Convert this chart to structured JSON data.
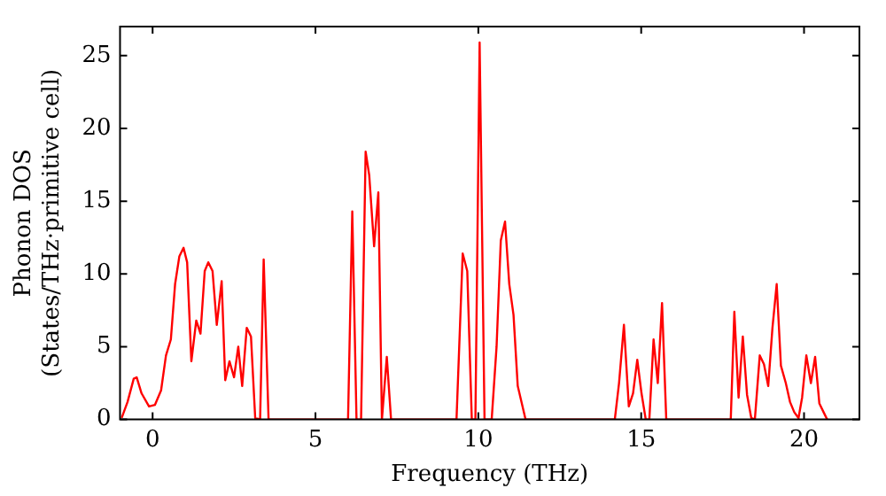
{
  "chart_data": {
    "type": "line",
    "xlabel": "Frequency (THz)",
    "ylabel": "Phonon DOS\n(States/THz·primitive cell)",
    "xlim": [
      -1,
      21.7
    ],
    "ylim": [
      0,
      27
    ],
    "xticks": [
      0,
      5,
      10,
      15,
      20
    ],
    "yticks": [
      0,
      5,
      10,
      15,
      20,
      25
    ],
    "grid": false,
    "legend": false,
    "marker": "none",
    "line_style": "solid",
    "series": [
      {
        "color": "#ff0000",
        "x": [
          -0.95,
          -0.77,
          -0.58,
          -0.49,
          -0.34,
          -0.11,
          0.07,
          0.26,
          0.41,
          0.56,
          0.69,
          0.82,
          0.95,
          1.06,
          1.19,
          1.34,
          1.47,
          1.6,
          1.71,
          1.84,
          1.97,
          2.12,
          2.23,
          2.36,
          2.5,
          2.63,
          2.75,
          2.89,
          3.02,
          3.15,
          3.3,
          3.41,
          3.56,
          6.0,
          6.13,
          6.26,
          6.4,
          6.54,
          6.65,
          6.8,
          6.93,
          7.04,
          7.19,
          7.32,
          9.33,
          9.52,
          9.66,
          9.8,
          9.91,
          10.04,
          10.19,
          10.41,
          10.56,
          10.69,
          10.82,
          10.95,
          11.08,
          11.21,
          11.45,
          14.19,
          14.32,
          14.47,
          14.62,
          14.75,
          14.88,
          15.01,
          15.14,
          15.25,
          15.38,
          15.51,
          15.64,
          15.77,
          17.75,
          17.86,
          17.99,
          18.12,
          18.25,
          18.38,
          18.49,
          18.64,
          18.77,
          18.9,
          19.03,
          19.16,
          19.29,
          19.44,
          19.57,
          19.7,
          19.83,
          19.94,
          20.07,
          20.21,
          20.34,
          20.47,
          20.6,
          20.71
        ],
        "values": [
          0.1,
          1.2,
          2.8,
          2.9,
          1.8,
          0.9,
          1.0,
          2.0,
          4.4,
          5.5,
          9.3,
          11.2,
          11.8,
          10.8,
          4.0,
          6.8,
          5.9,
          10.2,
          10.8,
          10.2,
          6.5,
          9.5,
          2.7,
          4.0,
          2.9,
          5.0,
          2.3,
          6.3,
          5.7,
          0.1,
          0,
          11.0,
          0,
          0,
          14.3,
          0,
          0,
          18.4,
          16.8,
          11.9,
          15.6,
          0,
          4.3,
          0,
          0,
          11.4,
          10.2,
          0,
          0,
          25.9,
          0,
          0,
          5.0,
          12.3,
          13.6,
          9.3,
          7.2,
          2.3,
          0,
          0,
          2.5,
          6.5,
          0.9,
          1.8,
          4.1,
          1.8,
          0,
          0,
          5.5,
          2.5,
          8.0,
          0,
          0,
          7.4,
          1.5,
          5.7,
          1.7,
          0.1,
          0,
          4.4,
          3.8,
          2.3,
          6.3,
          9.3,
          3.7,
          2.5,
          1.2,
          0.5,
          0.1,
          1.5,
          4.4,
          2.5,
          4.3,
          1.1,
          0.5,
          0
        ]
      }
    ]
  }
}
